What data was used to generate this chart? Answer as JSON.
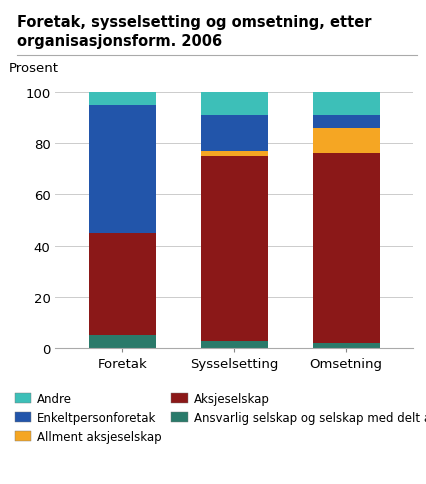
{
  "title_line1": "Foretak, sysselsetting og omsetning, etter",
  "title_line2": "organisasjonsform. 2006",
  "ylabel": "Prosent",
  "categories": [
    "Foretak",
    "Sysselsetting",
    "Omsetning"
  ],
  "series": [
    {
      "label": "Ansvarlig selskap og selskap med delt ansvar",
      "color": "#2A7A6A",
      "values": [
        5,
        3,
        2
      ]
    },
    {
      "label": "Aksjeselskap",
      "color": "#8B1818",
      "values": [
        40,
        72,
        74
      ]
    },
    {
      "label": "Allment aksjeselskap",
      "color": "#F5A623",
      "values": [
        0,
        2,
        10
      ]
    },
    {
      "label": "Enkeltpersonforetak",
      "color": "#2255AA",
      "values": [
        50,
        14,
        5
      ]
    },
    {
      "label": "Andre",
      "color": "#3DBFB8",
      "values": [
        5,
        9,
        9
      ]
    }
  ],
  "ylim": [
    0,
    106
  ],
  "yticks": [
    0,
    20,
    40,
    60,
    80,
    100
  ],
  "background_color": "#ffffff",
  "title_fontsize": 10.5,
  "axis_fontsize": 9.5,
  "legend_fontsize": 8.5,
  "bar_width": 0.6,
  "legend_order": [
    "Andre",
    "Enkeltpersonforetak",
    "Allment aksjeselskap",
    "Aksjeselskap",
    "Ansvarlig selskap og selskap med delt ansvar"
  ]
}
